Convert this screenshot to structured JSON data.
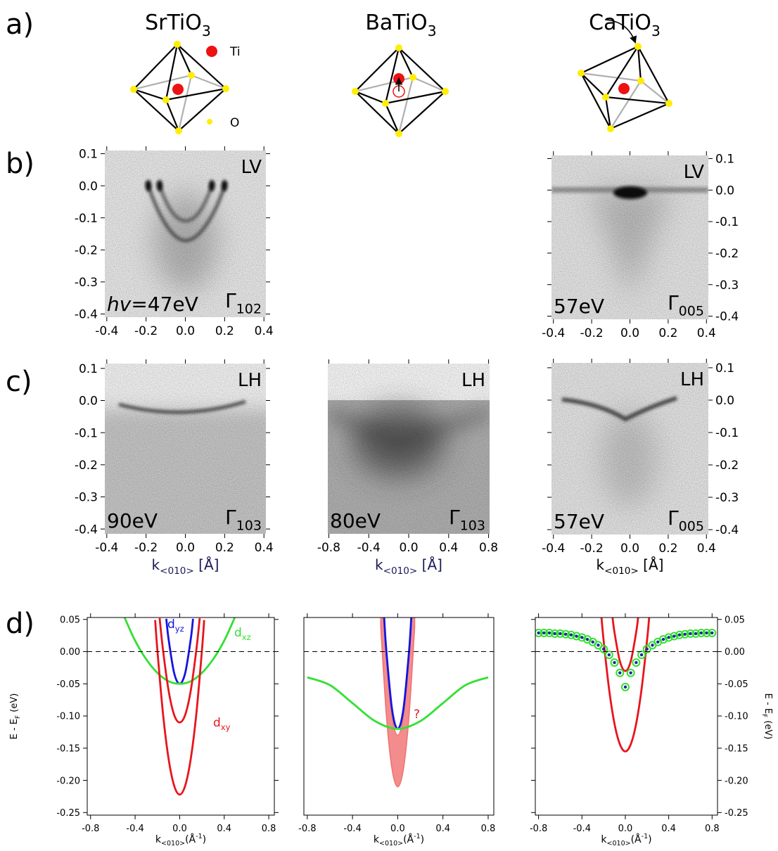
{
  "labels": {
    "a": "a)",
    "b": "b)",
    "c": "c)",
    "d": "d)"
  },
  "compounds": [
    [
      "SrTiO",
      {
        "text": "3",
        "shift": "sub"
      }
    ],
    [
      "BaTiO",
      {
        "text": "3",
        "shift": "sub"
      }
    ],
    [
      "CaTiO",
      {
        "text": "3",
        "shift": "sub"
      }
    ]
  ],
  "atoms": {
    "ti": "Ti",
    "o": "O"
  },
  "chart_data": [
    {
      "type": "image",
      "corner_label": "LV",
      "energy_label": [
        {
          "text": "hv",
          "italic": true
        },
        "=47eV"
      ],
      "point_label": [
        "Γ",
        {
          "text": "102",
          "shift": "sub"
        }
      ],
      "xlim": [
        -0.41,
        0.41
      ],
      "ylim": [
        -0.41,
        0.11
      ],
      "xticks": [
        -0.4,
        -0.2,
        {
          "value": 0,
          "label": "0.0"
        },
        0.2,
        0.4
      ],
      "yticks": [
        0.1,
        {
          "value": 0,
          "label": "0.0"
        },
        -0.1,
        -0.2,
        -0.3,
        -0.4
      ],
      "yaxis": "left"
    },
    {
      "type": "image",
      "corner_label": "LV",
      "energy_label": [
        "57eV"
      ],
      "point_label": [
        "Γ",
        {
          "text": "005",
          "shift": "sub"
        }
      ],
      "xlim": [
        -0.41,
        0.41
      ],
      "ylim": [
        -0.41,
        0.11
      ],
      "xticks": [
        -0.4,
        -0.2,
        {
          "value": 0,
          "label": "0.0"
        },
        0.2,
        0.4
      ],
      "yticks": [
        0.1,
        {
          "value": 0,
          "label": "0.0"
        },
        -0.1,
        -0.2,
        -0.3,
        -0.4
      ],
      "yaxis": "right"
    },
    {
      "type": "image",
      "corner_label": "LH",
      "energy_label": [
        "90eV"
      ],
      "point_label": [
        "Γ",
        {
          "text": "103",
          "shift": "sub"
        }
      ],
      "xlim": [
        -0.41,
        0.41
      ],
      "ylim": [
        -0.415,
        0.115
      ],
      "xticks": [
        -0.4,
        -0.2,
        {
          "value": 0,
          "label": "0.0"
        },
        0.2,
        0.4
      ],
      "yticks": [
        0.1,
        {
          "value": 0,
          "label": "0.0"
        },
        -0.1,
        -0.2,
        -0.3,
        -0.4
      ],
      "yaxis": "left",
      "xlabel": [
        "k",
        {
          "text": "<010>",
          "shift": "sub"
        },
        " [Å]"
      ],
      "xlabel_color": "#1a1a5a"
    },
    {
      "type": "image",
      "corner_label": "LH",
      "energy_label": [
        "80eV"
      ],
      "point_label": [
        "Γ",
        {
          "text": "103",
          "shift": "sub"
        }
      ],
      "xlim": [
        -0.81,
        0.81
      ],
      "ylim": [
        -0.415,
        0.115
      ],
      "xticks": [
        -0.8,
        -0.4,
        {
          "value": 0,
          "label": "0.0"
        },
        0.4,
        0.8
      ],
      "xlabel": [
        "k",
        {
          "text": "<010>",
          "shift": "sub"
        },
        " [Å]"
      ],
      "xlabel_color": "#1a1a5a"
    },
    {
      "type": "image",
      "corner_label": "LH",
      "energy_label": [
        "57eV"
      ],
      "point_label": [
        "Γ",
        {
          "text": "005",
          "shift": "sub"
        }
      ],
      "xlim": [
        -0.41,
        0.41
      ],
      "ylim": [
        -0.415,
        0.115
      ],
      "xticks": [
        -0.4,
        -0.2,
        {
          "value": 0,
          "label": "0.0"
        },
        0.2,
        0.4
      ],
      "yticks": [
        0.1,
        {
          "value": 0,
          "label": "0.0"
        },
        -0.1,
        -0.2,
        -0.3,
        -0.4
      ],
      "yaxis": "right",
      "xlabel": [
        "k",
        {
          "text": "<010>",
          "shift": "sub"
        },
        " [Å]"
      ],
      "xlabel_color": "#000000"
    },
    {
      "type": "line",
      "xlim": [
        -0.83,
        0.85
      ],
      "ylim": [
        -0.254,
        0.053
      ],
      "xticks": [
        -0.8,
        -0.4,
        {
          "value": 0,
          "label": "0.0"
        },
        0.4,
        0.8
      ],
      "yticks": [
        0.05,
        {
          "value": 0,
          "label": "0.00"
        },
        -0.05,
        {
          "value": -0.1,
          "label": "-0.10"
        },
        -0.15,
        {
          "value": -0.2,
          "label": "-0.20"
        },
        -0.25
      ],
      "yaxis": "left",
      "hline": 0,
      "ylabel": [
        "E - E",
        {
          "text": "F",
          "shift": "sub"
        },
        " (eV)"
      ],
      "xlabel": [
        "k",
        {
          "text": "<010>",
          "shift": "sub"
        },
        "(Å",
        {
          "text": "-1",
          "shift": "super"
        },
        ")"
      ],
      "series": [
        {
          "name": [
            "d",
            {
              "text": "yz",
              "shift": "sub"
            }
          ],
          "color": "#1414e0",
          "x": [
            -0.12,
            -0.1,
            -0.05,
            0,
            0.05,
            0.1,
            0.12
          ],
          "values": [
            0.051,
            0.02,
            -0.033,
            -0.05,
            -0.033,
            0.02,
            0.051
          ]
        },
        {
          "name": [
            "d",
            {
              "text": "xz",
              "shift": "sub"
            }
          ],
          "color": "#33e033",
          "x": [
            -0.5,
            -0.4,
            -0.3,
            -0.2,
            -0.1,
            0,
            0.1,
            0.2,
            0.3,
            0.4,
            0.5
          ],
          "values": [
            0.055,
            0.017,
            -0.012,
            -0.033,
            -0.046,
            -0.05,
            -0.046,
            -0.033,
            -0.012,
            0.017,
            0.055
          ]
        },
        {
          "name": [
            "d",
            {
              "text": "xy",
              "shift": "sub"
            }
          ],
          "color": "#e8141c",
          "x": [
            -0.22,
            -0.2,
            -0.15,
            -0.1,
            -0.05,
            0,
            0.05,
            0.1,
            0.15,
            0.2,
            0.22
          ],
          "values": [
            0.049,
            0.002,
            -0.096,
            -0.166,
            -0.208,
            -0.222,
            -0.208,
            -0.166,
            -0.096,
            0.002,
            0.049
          ]
        },
        {
          "color": "#e8141c",
          "x": [
            -0.18,
            -0.15,
            -0.1,
            -0.05,
            0,
            0.05,
            0.1,
            0.15,
            0.18
          ],
          "values": [
            0.052,
            0.003,
            -0.06,
            -0.098,
            -0.11,
            -0.098,
            -0.06,
            0.003,
            0.052
          ]
        }
      ]
    },
    {
      "type": "line",
      "xlim": [
        -0.83,
        0.85
      ],
      "ylim": [
        -0.254,
        0.053
      ],
      "xticks": [
        -0.8,
        -0.4,
        {
          "value": 0,
          "label": "0.0"
        },
        0.4,
        0.8
      ],
      "hline": 0,
      "xlabel": [
        "k",
        {
          "text": "<010>",
          "shift": "sub"
        },
        "(Å",
        {
          "text": "-1",
          "shift": "super"
        },
        ")"
      ],
      "band": {
        "color": "#f07070",
        "x": [
          -0.15,
          -0.1,
          -0.05,
          0,
          0.05,
          0.1,
          0.15
        ],
        "lower": [
          0.038,
          -0.1,
          -0.183,
          -0.21,
          -0.183,
          -0.1,
          0.038
        ],
        "upper": [
          0.14,
          -0.01,
          -0.1,
          -0.13,
          -0.1,
          -0.01,
          0.14
        ]
      },
      "series": [
        {
          "color": "#1414e0",
          "x": [
            -0.12,
            -0.1,
            -0.05,
            0,
            0.05,
            0.1,
            0.12
          ],
          "values": [
            0.053,
            0,
            -0.09,
            -0.12,
            -0.09,
            0,
            0.053
          ]
        },
        {
          "color": "#33e033",
          "x": [
            -0.8,
            -0.6,
            -0.4,
            -0.2,
            0,
            0.2,
            0.4,
            0.6,
            0.8
          ],
          "values": [
            -0.04,
            -0.052,
            -0.08,
            -0.108,
            -0.12,
            -0.108,
            -0.08,
            -0.052,
            -0.04
          ]
        }
      ],
      "annotations": [
        {
          "text": "?",
          "color": "#e8141c"
        }
      ]
    },
    {
      "type": "line",
      "xlim": [
        -0.83,
        0.85
      ],
      "ylim": [
        -0.254,
        0.053
      ],
      "xticks": [
        -0.8,
        -0.4,
        {
          "value": 0,
          "label": "0.0"
        },
        0.4,
        0.8
      ],
      "yticks": [
        0.05,
        {
          "value": 0,
          "label": "0.00"
        },
        -0.05,
        {
          "value": -0.1,
          "label": "-0.10"
        },
        -0.15,
        {
          "value": -0.2,
          "label": "-0.20"
        },
        -0.25
      ],
      "yaxis": "right",
      "hline": 0,
      "ylabel": [
        "E - E",
        {
          "text": "F",
          "shift": "sub"
        },
        " (eV)"
      ],
      "xlabel": [
        "k",
        {
          "text": "<010>",
          "shift": "sub"
        },
        "(Å",
        {
          "text": "-1",
          "shift": "super"
        },
        ")"
      ],
      "series": [
        {
          "color": "#e8141c",
          "x": [
            -0.22,
            -0.2,
            -0.15,
            -0.1,
            -0.05,
            0,
            0.05,
            0.1,
            0.15,
            0.2,
            0.22
          ],
          "values": [
            0.053,
            0.017,
            -0.058,
            -0.112,
            -0.144,
            -0.155,
            -0.144,
            -0.112,
            -0.058,
            0.017,
            0.053
          ]
        },
        {
          "color": "#e8141c",
          "x": [
            -0.12,
            -0.1,
            -0.05,
            0,
            0.05,
            0.1,
            0.12
          ],
          "values": [
            0.056,
            0.03,
            -0.015,
            -0.03,
            -0.015,
            0.03,
            0.056
          ]
        },
        {
          "color": "#33e033",
          "marker": "circle",
          "fill": "#1a2a9a",
          "x": [
            -0.8,
            -0.75,
            -0.7,
            -0.65,
            -0.6,
            -0.55,
            -0.5,
            -0.45,
            -0.4,
            -0.35,
            -0.3,
            -0.25,
            -0.2,
            -0.15,
            -0.1,
            -0.05,
            0,
            0.05,
            0.1,
            0.15,
            0.2,
            0.25,
            0.3,
            0.35,
            0.4,
            0.45,
            0.5,
            0.55,
            0.6,
            0.65,
            0.7,
            0.75,
            0.8
          ],
          "values": [
            0.029,
            0.029,
            0.029,
            0.028,
            0.028,
            0.027,
            0.026,
            0.024,
            0.022,
            0.019,
            0.015,
            0.01,
            0.004,
            -0.005,
            -0.017,
            -0.033,
            -0.055,
            -0.033,
            -0.017,
            -0.005,
            0.004,
            0.01,
            0.015,
            0.019,
            0.022,
            0.024,
            0.026,
            0.027,
            0.028,
            0.028,
            0.029,
            0.029,
            0.029
          ]
        }
      ]
    }
  ]
}
